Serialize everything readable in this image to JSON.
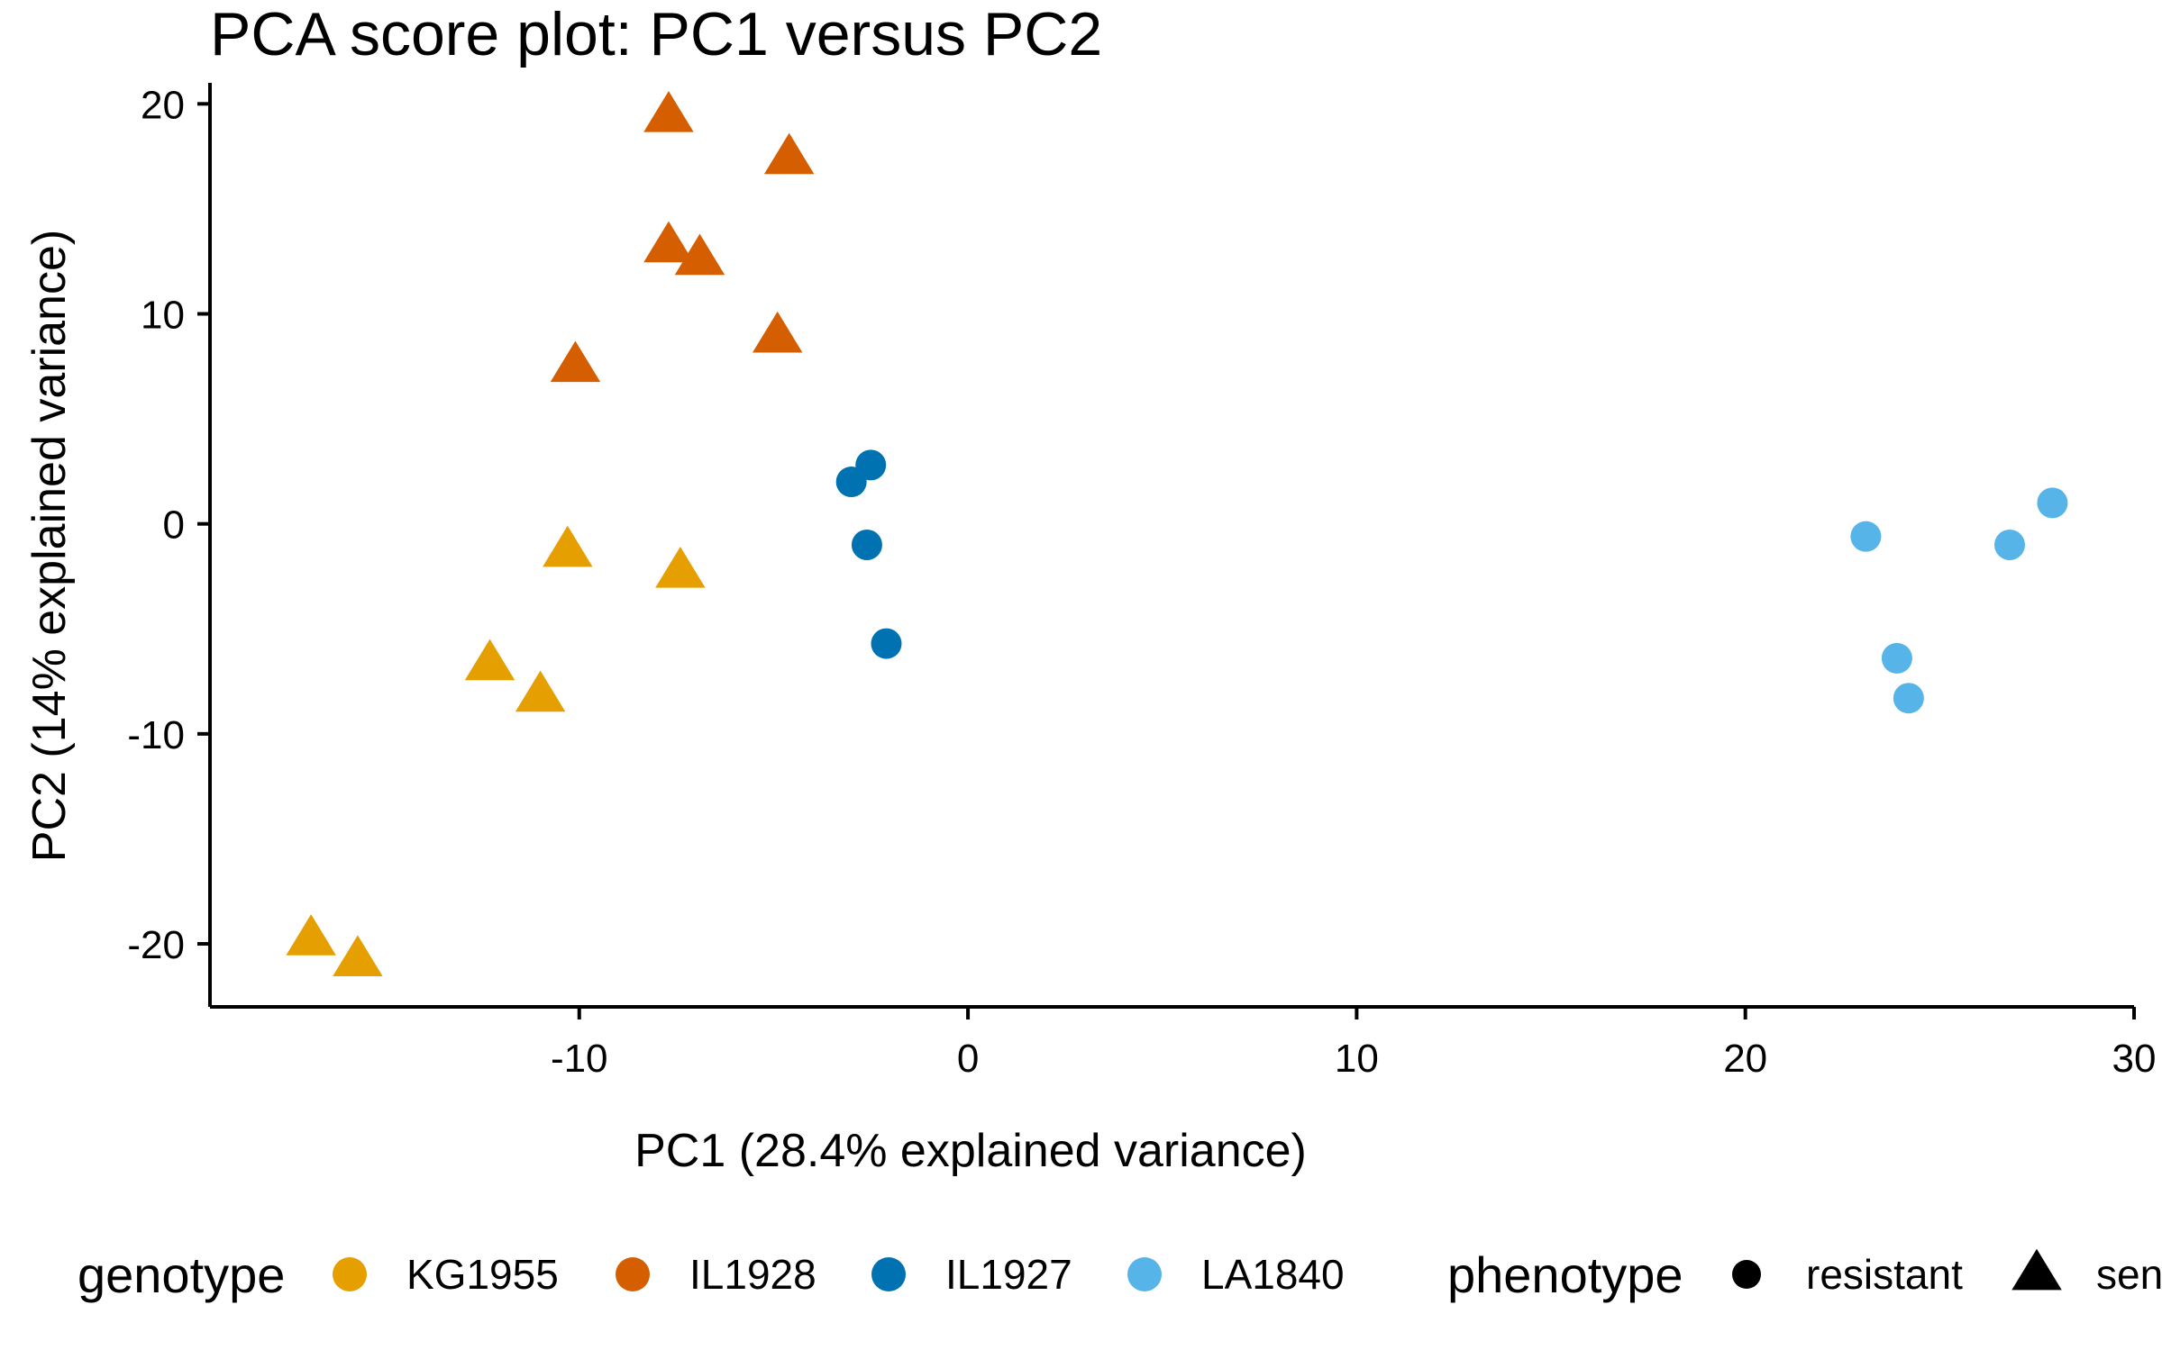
{
  "chart_data": {
    "type": "scatter",
    "title": "PCA score plot: PC1 versus PC2",
    "xlabel": "PC1 (28.4% explained variance)",
    "ylabel": "PC2 (14% explained variance)",
    "xlim": [
      -19.5,
      30
    ],
    "ylim": [
      -23,
      21
    ],
    "xticks": [
      -10,
      0,
      10,
      20,
      30
    ],
    "yticks": [
      -20,
      -10,
      0,
      10,
      20
    ],
    "xtick_labels": [
      "-10",
      "0",
      "10",
      "20",
      "30"
    ],
    "ytick_labels": [
      "-20",
      "-10",
      "0",
      "10",
      "20"
    ],
    "grid": false,
    "legend_position": "bottom",
    "legend": {
      "genotype_title": "genotype",
      "phenotype_title": "phenotype",
      "genotypes": [
        {
          "name": "KG1955",
          "color": "#E69F00"
        },
        {
          "name": "IL1928",
          "color": "#D55E00"
        },
        {
          "name": "IL1927",
          "color": "#0072B2"
        },
        {
          "name": "LA1840",
          "color": "#56B4E9"
        }
      ],
      "phenotypes": [
        {
          "name": "resistant",
          "shape": "circle"
        },
        {
          "name": "sensitive",
          "shape": "triangle"
        }
      ]
    },
    "series": [
      {
        "genotype": "KG1955",
        "phenotype": "sensitive",
        "points": [
          [
            -10.3,
            -1.3
          ],
          [
            -7.4,
            -2.3
          ],
          [
            -12.3,
            -6.7
          ],
          [
            -11.0,
            -8.2
          ],
          [
            -16.9,
            -19.8
          ],
          [
            -15.7,
            -20.8
          ]
        ]
      },
      {
        "genotype": "IL1928",
        "phenotype": "sensitive",
        "points": [
          [
            -7.7,
            19.4
          ],
          [
            -4.6,
            17.4
          ],
          [
            -7.7,
            13.2
          ],
          [
            -6.9,
            12.6
          ],
          [
            -4.9,
            8.9
          ],
          [
            -10.1,
            7.5
          ]
        ]
      },
      {
        "genotype": "IL1927",
        "phenotype": "resistant",
        "points": [
          [
            -3.0,
            2.0
          ],
          [
            -2.5,
            2.8
          ],
          [
            -2.6,
            -1.0
          ],
          [
            -2.1,
            -5.7
          ]
        ]
      },
      {
        "genotype": "LA1840",
        "phenotype": "resistant",
        "points": [
          [
            23.1,
            -0.6
          ],
          [
            27.9,
            1.0
          ],
          [
            26.8,
            -1.0
          ],
          [
            23.9,
            -6.4
          ],
          [
            24.2,
            -8.3
          ]
        ]
      }
    ]
  }
}
